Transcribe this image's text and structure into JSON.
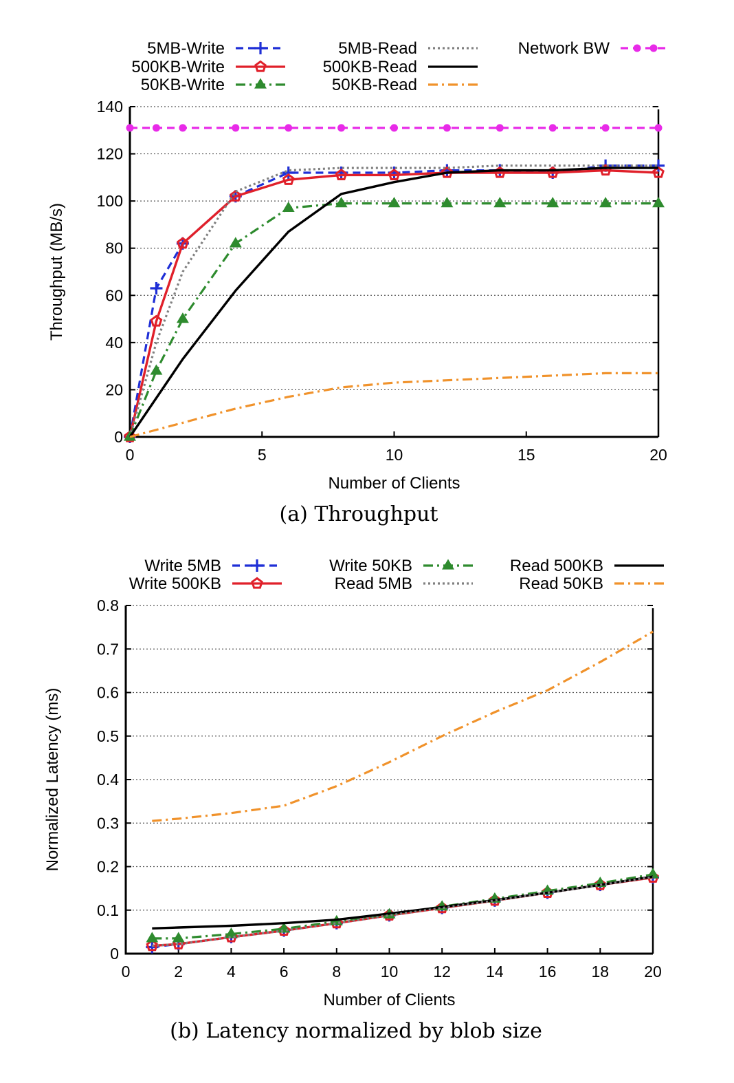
{
  "chart_data": [
    {
      "type": "line",
      "caption": "(a) Throughput",
      "xlabel": "Number of Clients",
      "ylabel": "Throughput (MB/s)",
      "xlim": [
        0,
        20
      ],
      "ylim": [
        0,
        140
      ],
      "xticks": [
        "0",
        "5",
        "10",
        "15",
        "20"
      ],
      "yticks": [
        "0",
        "20",
        "40",
        "60",
        "80",
        "100",
        "120",
        "140"
      ],
      "grid": true,
      "legend_position": "top",
      "series": [
        {
          "name": "5MB-Write",
          "color": "#1f2fd6",
          "style": "dashed",
          "marker": "plus",
          "x": [
            0,
            1,
            2,
            4,
            6,
            8,
            10,
            12,
            14,
            16,
            18,
            20
          ],
          "y": [
            0,
            63,
            82,
            102,
            112,
            112,
            112,
            113,
            113,
            112,
            115,
            115
          ]
        },
        {
          "name": "500KB-Write",
          "color": "#e0202a",
          "style": "solid",
          "marker": "pentagon",
          "x": [
            0,
            1,
            2,
            4,
            6,
            8,
            10,
            12,
            14,
            16,
            18,
            20
          ],
          "y": [
            0,
            49,
            82,
            102,
            109,
            111,
            111,
            112,
            112,
            112,
            113,
            112
          ]
        },
        {
          "name": "50KB-Write",
          "color": "#2e8b2e",
          "style": "dashdot",
          "marker": "triangle",
          "x": [
            0,
            1,
            2,
            4,
            6,
            8,
            10,
            12,
            14,
            16,
            18,
            20
          ],
          "y": [
            0,
            28,
            50,
            82,
            97,
            99,
            99,
            99,
            99,
            99,
            99,
            99
          ]
        },
        {
          "name": "5MB-Read",
          "color": "#808080",
          "style": "dotted",
          "marker": "none",
          "x": [
            0,
            1,
            2,
            4,
            6,
            8,
            10,
            12,
            14,
            16,
            18,
            20
          ],
          "y": [
            0,
            40,
            70,
            104,
            113,
            114,
            114,
            114,
            115,
            115,
            115,
            115
          ]
        },
        {
          "name": "500KB-Read",
          "color": "#000000",
          "style": "solid",
          "marker": "none",
          "x": [
            0,
            2,
            4,
            6,
            8,
            10,
            12,
            14,
            16,
            18,
            20
          ],
          "y": [
            0,
            33,
            62,
            87,
            103,
            108,
            112,
            113,
            113,
            114,
            114
          ]
        },
        {
          "name": "50KB-Read",
          "color": "#f0922b",
          "style": "dashdot",
          "marker": "none",
          "x": [
            0,
            2,
            4,
            6,
            8,
            10,
            12,
            14,
            16,
            18,
            20
          ],
          "y": [
            0,
            6,
            12,
            17,
            21,
            23,
            24,
            25,
            26,
            27,
            27
          ]
        },
        {
          "name": "Network BW",
          "color": "#e82ae8",
          "style": "dashed",
          "marker": "dot",
          "x": [
            0,
            1,
            2,
            4,
            6,
            8,
            10,
            12,
            14,
            16,
            18,
            20
          ],
          "y": [
            131,
            131,
            131,
            131,
            131,
            131,
            131,
            131,
            131,
            131,
            131,
            131
          ]
        }
      ]
    },
    {
      "type": "line",
      "caption": "(b) Latency normalized by blob size",
      "xlabel": "Number of Clients",
      "ylabel": "Normalized Latency (ms)",
      "xlim": [
        0,
        20
      ],
      "ylim": [
        0,
        0.8
      ],
      "xticks": [
        "0",
        "2",
        "4",
        "6",
        "8",
        "10",
        "12",
        "14",
        "16",
        "18",
        "20"
      ],
      "yticks": [
        "0",
        "0.1",
        "0.2",
        "0.3",
        "0.4",
        "0.5",
        "0.6",
        "0.7",
        "0.8"
      ],
      "grid": true,
      "legend_position": "top",
      "series": [
        {
          "name": "Write 5MB",
          "color": "#1f2fd6",
          "style": "dashed",
          "marker": "plus",
          "x": [
            1,
            2,
            4,
            6,
            8,
            10,
            12,
            14,
            16,
            18,
            20
          ],
          "y": [
            0.015,
            0.022,
            0.038,
            0.053,
            0.07,
            0.088,
            0.105,
            0.122,
            0.14,
            0.158,
            0.175
          ]
        },
        {
          "name": "Write 500KB",
          "color": "#e0202a",
          "style": "solid",
          "marker": "pentagon",
          "x": [
            1,
            2,
            4,
            6,
            8,
            10,
            12,
            14,
            16,
            18,
            20
          ],
          "y": [
            0.018,
            0.022,
            0.038,
            0.053,
            0.07,
            0.088,
            0.105,
            0.122,
            0.14,
            0.158,
            0.175
          ]
        },
        {
          "name": "Write 50KB",
          "color": "#2e8b2e",
          "style": "dashdot",
          "marker": "triangle",
          "x": [
            1,
            2,
            4,
            6,
            8,
            10,
            12,
            14,
            16,
            18,
            20
          ],
          "y": [
            0.035,
            0.035,
            0.045,
            0.057,
            0.074,
            0.09,
            0.108,
            0.126,
            0.144,
            0.162,
            0.182
          ]
        },
        {
          "name": "Read 500KB",
          "color": "#000000",
          "style": "solid",
          "marker": "none",
          "x": [
            1,
            2,
            4,
            6,
            8,
            10,
            12,
            14,
            16,
            18,
            20
          ],
          "y": [
            0.058,
            0.06,
            0.064,
            0.07,
            0.078,
            0.092,
            0.107,
            0.123,
            0.14,
            0.158,
            0.177
          ]
        },
        {
          "name": "Read 5MB",
          "color": "#808080",
          "style": "dotted",
          "marker": "none",
          "x": [
            1,
            2,
            4,
            6,
            8,
            10,
            12,
            14,
            16,
            18,
            20
          ],
          "y": [
            0.018,
            0.022,
            0.038,
            0.053,
            0.07,
            0.088,
            0.105,
            0.122,
            0.14,
            0.158,
            0.176
          ]
        },
        {
          "name": "Read 50KB",
          "color": "#f0922b",
          "style": "dashdot",
          "marker": "none",
          "x": [
            1,
            2,
            4,
            6,
            8,
            10,
            12,
            14,
            16,
            18,
            20
          ],
          "y": [
            0.305,
            0.31,
            0.323,
            0.34,
            0.385,
            0.44,
            0.5,
            0.555,
            0.605,
            0.67,
            0.74
          ]
        }
      ]
    }
  ]
}
